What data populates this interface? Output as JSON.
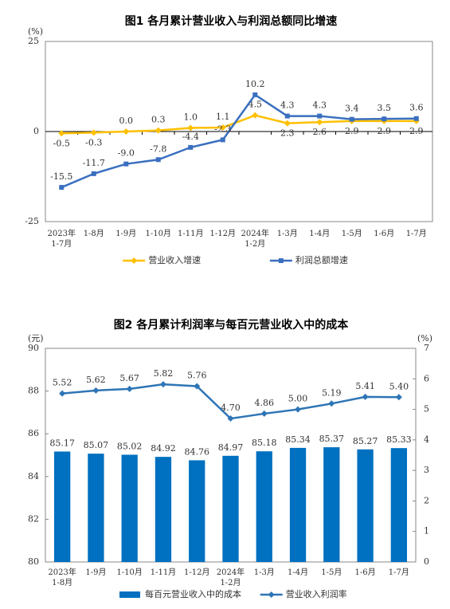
{
  "chart_data": [
    {
      "type": "line",
      "title": "图1  各月累计营业收入与利润总额同比增速",
      "y_unit": "(%)",
      "categories": [
        "2023年\n1-7月",
        "1-8月",
        "1-9月",
        "1-10月",
        "1-11月",
        "1-12月",
        "2024年\n1-2月",
        "1-3月",
        "1-4月",
        "1-5月",
        "1-6月",
        "1-7月"
      ],
      "ylim": [
        -25,
        25
      ],
      "yticks": [
        -25,
        0,
        25
      ],
      "legend": "bottom",
      "series": [
        {
          "name": "营业收入增速",
          "color": "#FFC000",
          "marker": "diamond",
          "values": [
            -0.5,
            -0.3,
            0.0,
            0.3,
            1.0,
            1.1,
            4.5,
            2.3,
            2.6,
            2.9,
            2.9,
            2.9
          ],
          "value_labels": [
            "-0.5",
            "-0.3",
            "0.0",
            "0.3",
            "1.0",
            "1.1",
            "4.5",
            "2.3",
            "2.6",
            "2.9",
            "2.9",
            "2.9"
          ]
        },
        {
          "name": "利润总额增速",
          "color": "#3A6FBF",
          "marker": "square",
          "values": [
            -15.5,
            -11.7,
            -9.0,
            -7.8,
            -4.4,
            -2.3,
            10.2,
            4.3,
            4.3,
            3.4,
            3.5,
            3.6
          ],
          "value_labels": [
            "-15.5",
            "-11.7",
            "-9.0",
            "-7.8",
            "-4.4",
            "-2.3",
            "10.2",
            "4.3",
            "4.3",
            "3.4",
            "3.5",
            "3.6"
          ]
        }
      ]
    },
    {
      "type": "bar",
      "title": "图2  各月累计利润率与每百元营业收入中的成本",
      "y_unit": "(元)",
      "y2_unit": "(%)",
      "categories": [
        "2023年\n1-8月",
        "1-9月",
        "1-10月",
        "1-11月",
        "1-12月",
        "2024年\n1-2月",
        "1-3月",
        "1-4月",
        "1-5月",
        "1-6月",
        "1-7月"
      ],
      "ylim": [
        80,
        90
      ],
      "yticks": [
        80,
        82,
        84,
        86,
        88,
        90
      ],
      "y2lim": [
        0,
        7
      ],
      "y2ticks": [
        0,
        1,
        2,
        3,
        4,
        5,
        6,
        7
      ],
      "legend": "bottom",
      "series": [
        {
          "name": "每百元营业收入中的成本",
          "type": "bar",
          "color": "#0070C0",
          "values": [
            85.17,
            85.07,
            85.02,
            84.92,
            84.76,
            84.97,
            85.18,
            85.34,
            85.37,
            85.27,
            85.33
          ]
        },
        {
          "name": "营业收入利润率",
          "type": "line",
          "axis": "y2",
          "color": "#2E75B6",
          "marker": "diamond",
          "values": [
            5.52,
            5.62,
            5.67,
            5.82,
            5.76,
            4.7,
            4.86,
            5.0,
            5.19,
            5.41,
            5.4
          ],
          "value_labels": [
            "5.52",
            "5.62",
            "5.67",
            "5.82",
            "5.76",
            "4.70",
            "4.86",
            "5.00",
            "5.19",
            "5.41",
            "5.40"
          ]
        }
      ]
    }
  ]
}
